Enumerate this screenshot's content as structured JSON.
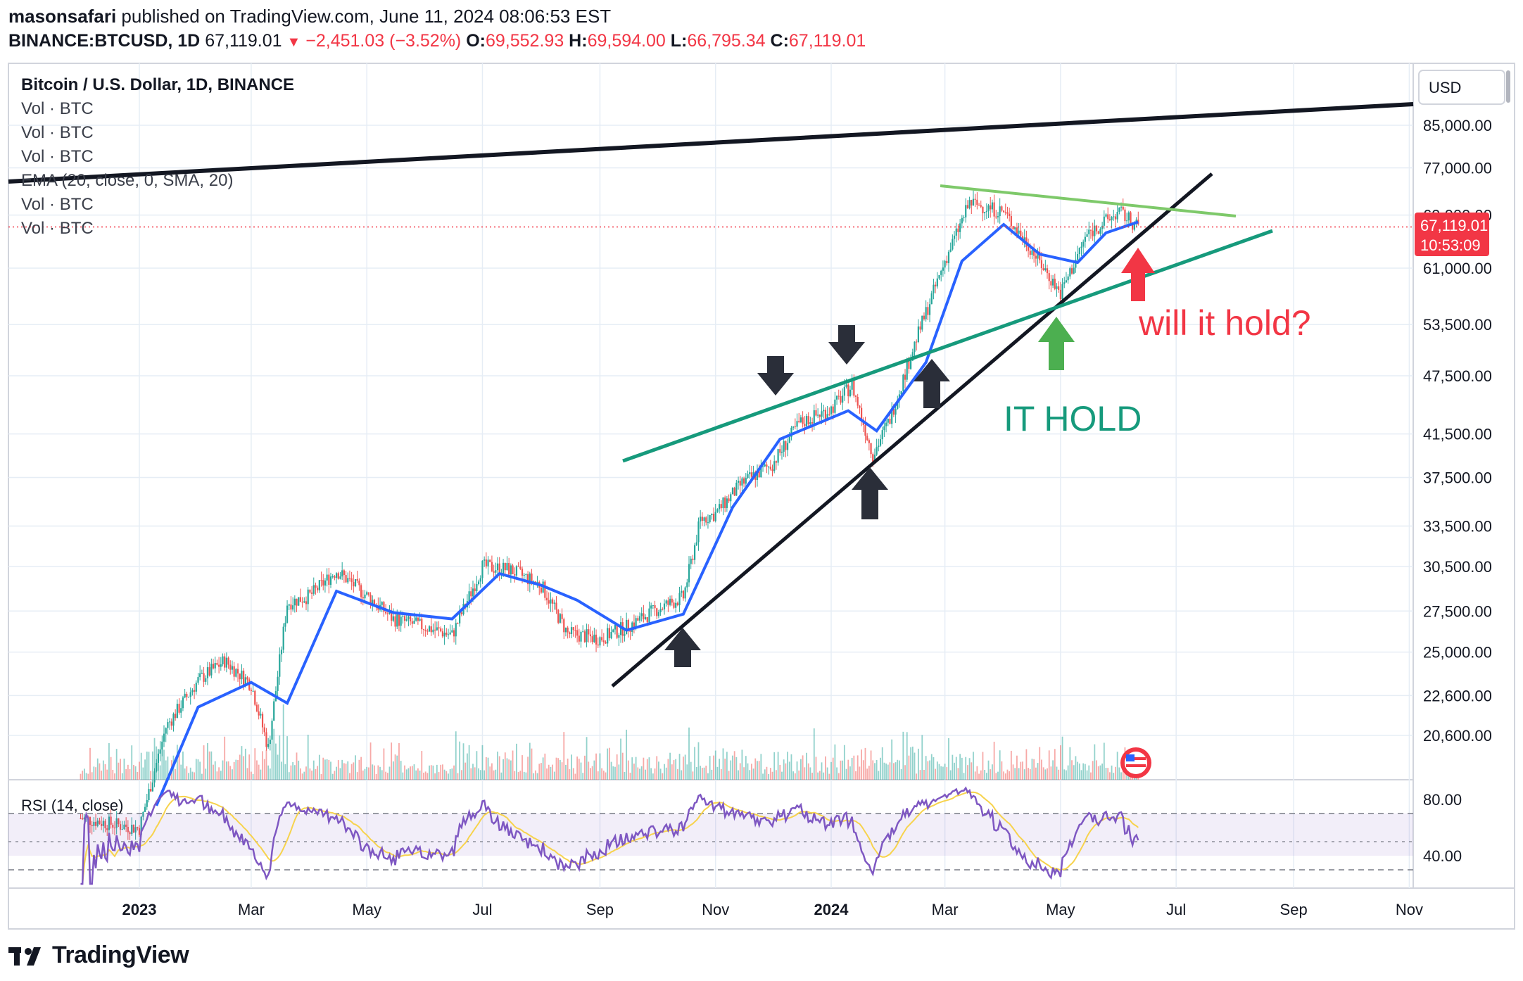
{
  "header": {
    "author": "masonsafari",
    "published_text": "published on TradingView.com, June 11, 2024 08:06:53 EST",
    "symbol_line": "BINANCE:BTCUSD, 1D",
    "last": "67,119.01",
    "change": "−2,451.03 (−3.52%)",
    "o_label": "O:",
    "o_value": "69,552.93",
    "h_label": "H:",
    "h_value": "69,594.00",
    "l_label": "L:",
    "l_value": "66,795.34",
    "c_label": "C:",
    "c_value": "67,119.01"
  },
  "legend": [
    "Bitcoin / U.S. Dollar, 1D, BINANCE",
    "Vol · BTC",
    "Vol · BTC",
    "Vol · BTC",
    "EMA (20, close, 0, SMA, 20)",
    "Vol · BTC",
    "Vol · BTC"
  ],
  "currency_button": "USD",
  "price_badge": {
    "price": "67,119.01",
    "countdown": "10:53:09"
  },
  "annotations": {
    "will_it_hold": "will it hold?",
    "it_hold": "IT HOLD"
  },
  "rsi_label": "RSI (14, close)",
  "footer": {
    "brand": "TradingView"
  },
  "colors": {
    "up": "#26a69a",
    "down": "#ef5350",
    "ema": "#2962ff",
    "rsi": "#7e57c2",
    "rsi_ma": "#f7d34d",
    "green_line": "#169a7c",
    "light_green_line": "#7ec96a",
    "black_line": "#131722",
    "red_arrow": "#f23645",
    "green_arrow": "#4caf50",
    "text_red": "#f23645",
    "text_green": "#169a7c",
    "grid": "#e6edf5"
  },
  "chart_data": {
    "type": "line",
    "title": "Bitcoin / U.S. Dollar, 1D, BINANCE",
    "x_ticks": [
      "2023",
      "Mar",
      "May",
      "Jul",
      "Sep",
      "Nov",
      "2024",
      "Mar",
      "May",
      "Jul",
      "Sep",
      "Nov"
    ],
    "y_ticks": [
      "85,000.00",
      "77,000.00",
      "69,000.00",
      "61,000.00",
      "53,500.00",
      "47,500.00",
      "41,500.00",
      "37,500.00",
      "33,500.00",
      "30,500.00",
      "27,500.00",
      "25,000.00",
      "22,600.00",
      "20,600.00"
    ],
    "y_scale": "log",
    "rsi_ticks": [
      "80.00",
      "40.00"
    ],
    "series": [
      {
        "type": "candles-close",
        "x": [
          "2022-12-01",
          "2022-12-15",
          "2023-01-01",
          "2023-01-15",
          "2023-02-01",
          "2023-02-15",
          "2023-03-01",
          "2023-03-10",
          "2023-03-20",
          "2023-04-01",
          "2023-04-15",
          "2023-05-01",
          "2023-05-15",
          "2023-06-01",
          "2023-06-15",
          "2023-07-01",
          "2023-07-15",
          "2023-08-01",
          "2023-08-15",
          "2023-09-01",
          "2023-09-15",
          "2023-10-01",
          "2023-10-15",
          "2023-10-24",
          "2023-11-01",
          "2023-11-15",
          "2023-12-01",
          "2023-12-15",
          "2024-01-01",
          "2024-01-12",
          "2024-01-23",
          "2024-02-01",
          "2024-02-15",
          "2024-03-01",
          "2024-03-14",
          "2024-04-01",
          "2024-04-15",
          "2024-05-01",
          "2024-05-15",
          "2024-06-01",
          "2024-06-11"
        ],
        "values": [
          17000,
          16800,
          16600,
          21000,
          23400,
          24500,
          23200,
          20000,
          28000,
          28500,
          30200,
          28500,
          27000,
          26500,
          26000,
          30500,
          30300,
          29200,
          26100,
          25800,
          26500,
          27600,
          28400,
          34000,
          34500,
          37000,
          38700,
          42500,
          44000,
          46500,
          39500,
          43000,
          51800,
          62000,
          71000,
          69500,
          64000,
          57500,
          66000,
          69500,
          67119
        ]
      },
      {
        "name": "EMA (20, close, 0, SMA, 20)",
        "x": [
          "2023-01-10",
          "2023-02-01",
          "2023-03-01",
          "2023-03-20",
          "2023-04-15",
          "2023-05-15",
          "2023-06-15",
          "2023-07-10",
          "2023-08-01",
          "2023-08-20",
          "2023-09-15",
          "2023-10-15",
          "2023-11-10",
          "2023-12-05",
          "2024-01-10",
          "2024-01-25",
          "2024-02-20",
          "2024-03-10",
          "2024-04-01",
          "2024-04-20",
          "2024-05-10",
          "2024-05-25",
          "2024-06-11"
        ],
        "values": [
          17500,
          22000,
          23300,
          22200,
          28800,
          27400,
          27000,
          30000,
          29200,
          28200,
          26300,
          27300,
          35000,
          41000,
          43800,
          41800,
          49000,
          62000,
          67500,
          63000,
          61800,
          66200,
          67900
        ]
      }
    ],
    "annotations": [
      {
        "text": "will it hold?"
      },
      {
        "text": "IT HOLD"
      }
    ]
  }
}
